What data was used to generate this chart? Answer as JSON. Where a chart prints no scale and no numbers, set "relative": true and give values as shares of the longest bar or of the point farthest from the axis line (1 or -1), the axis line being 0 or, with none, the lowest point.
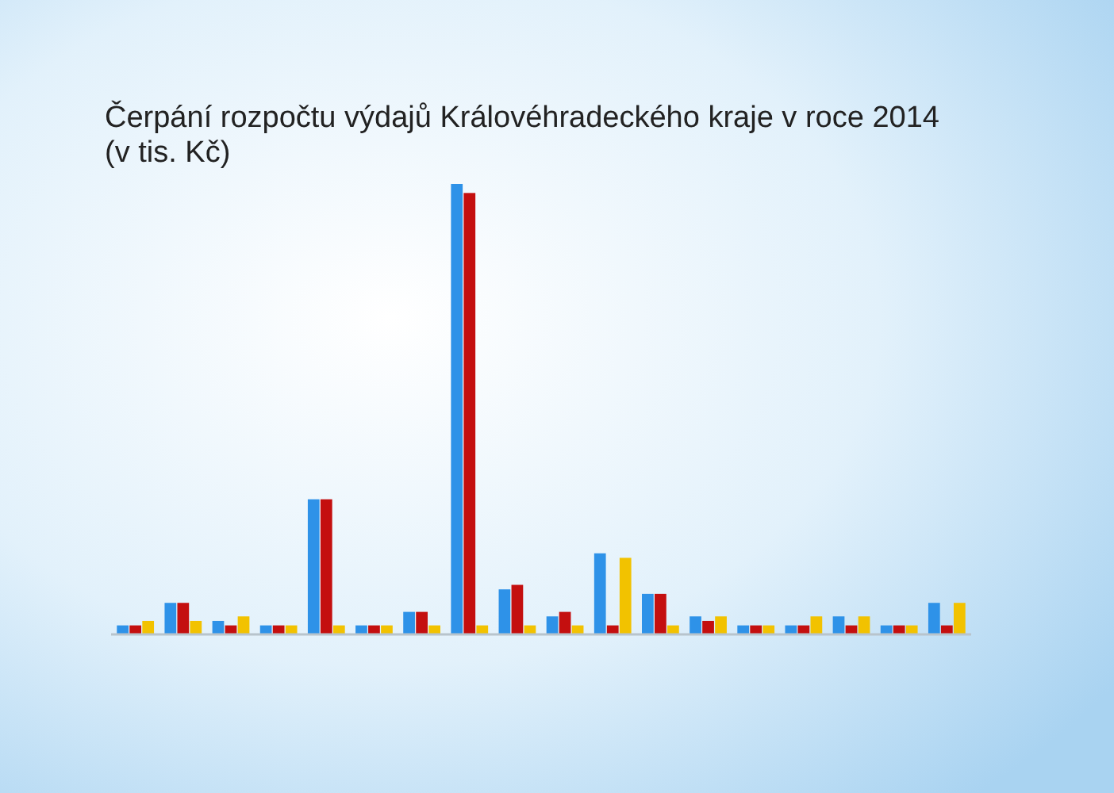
{
  "chart_data": {
    "type": "bar",
    "title": "Čerpání rozpočtu výdajů Královéhradeckého kraje v roce 2014 (v tis. Kč)",
    "relative": true,
    "categories": [
      null,
      null,
      null,
      null,
      null,
      null,
      null,
      null,
      null,
      null,
      null,
      null,
      null,
      null,
      null,
      null,
      null,
      null
    ],
    "series": [
      {
        "color": "#2e92e8",
        "values": [
          0.02,
          0.07,
          0.03,
          0.02,
          0.3,
          0.02,
          0.05,
          1,
          0.1,
          0.04,
          0.18,
          0.09,
          0.04,
          0.02,
          0.02,
          0.04,
          0.02,
          0.07
        ]
      },
      {
        "color": "#c40f0f",
        "values": [
          0.02,
          0.07,
          0.02,
          0.02,
          0.3,
          0.02,
          0.05,
          0.98,
          0.11,
          0.05,
          0.02,
          0.09,
          0.03,
          0.02,
          0.02,
          0.02,
          0.02,
          0.02
        ]
      },
      {
        "color": "#f2c200",
        "values": [
          0.03,
          0.03,
          0.04,
          0.02,
          0.02,
          0.02,
          0.02,
          0.02,
          0.02,
          0.02,
          0.17,
          0.02,
          0.04,
          0.02,
          0.04,
          0.04,
          0.02,
          0.07
        ]
      }
    ]
  }
}
